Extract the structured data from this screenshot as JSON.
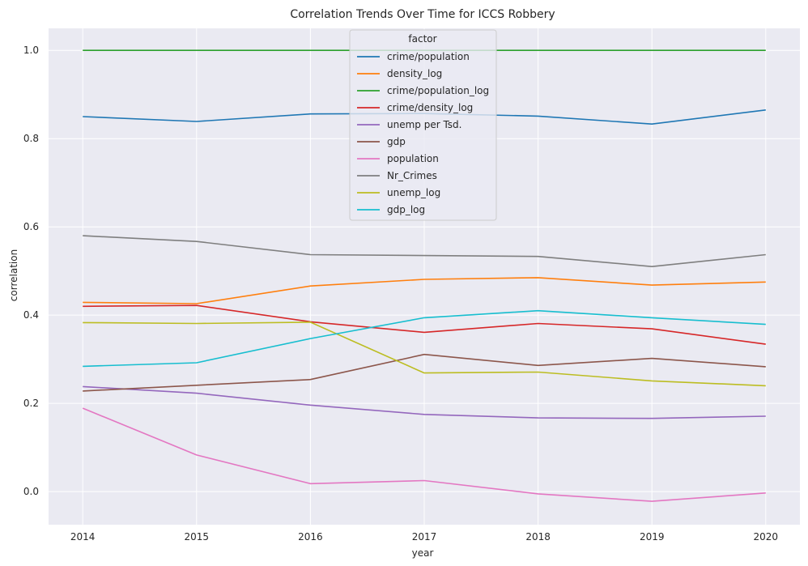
{
  "chart_data": {
    "type": "line",
    "title": "Correlation Trends Over Time for ICCS Robbery",
    "xlabel": "year",
    "ylabel": "correlation",
    "x": [
      2014,
      2015,
      2016,
      2017,
      2018,
      2019,
      2020
    ],
    "x_tick_labels": [
      "2014",
      "2015",
      "2016",
      "2017",
      "2018",
      "2019",
      "2020"
    ],
    "y_ticks": [
      0.0,
      0.2,
      0.4,
      0.6,
      0.8,
      1.0
    ],
    "y_tick_labels": [
      "0.0",
      "0.2",
      "0.4",
      "0.6",
      "0.8",
      "1.0"
    ],
    "xlim": [
      2013.7,
      2020.3
    ],
    "ylim": [
      -0.075,
      1.05
    ],
    "grid": true,
    "legend": {
      "title": "factor",
      "position": "upper-center"
    },
    "series": [
      {
        "name": "crime/population",
        "color": "#1f77b4",
        "values": [
          0.85,
          0.839,
          0.856,
          0.857,
          0.851,
          0.833,
          0.865
        ]
      },
      {
        "name": "density_log",
        "color": "#ff7f0e",
        "values": [
          0.429,
          0.426,
          0.466,
          0.481,
          0.485,
          0.468,
          0.475
        ]
      },
      {
        "name": "crime/population_log",
        "color": "#2ca02c",
        "values": [
          1.0,
          1.0,
          1.0,
          1.0,
          1.0,
          1.0,
          1.0
        ]
      },
      {
        "name": "crime/density_log",
        "color": "#d62728",
        "values": [
          0.42,
          0.422,
          0.385,
          0.361,
          0.381,
          0.369,
          0.334
        ]
      },
      {
        "name": "unemp per Tsd.",
        "color": "#9467bd",
        "values": [
          0.238,
          0.223,
          0.196,
          0.175,
          0.167,
          0.166,
          0.171
        ]
      },
      {
        "name": "gdp",
        "color": "#8c564b",
        "values": [
          0.228,
          0.241,
          0.254,
          0.311,
          0.286,
          0.302,
          0.283
        ]
      },
      {
        "name": "population",
        "color": "#e377c2",
        "values": [
          0.189,
          0.083,
          0.018,
          0.025,
          -0.005,
          -0.022,
          -0.003
        ]
      },
      {
        "name": "Nr_Crimes",
        "color": "#7f7f7f",
        "values": [
          0.58,
          0.567,
          0.537,
          0.535,
          0.533,
          0.51,
          0.537
        ]
      },
      {
        "name": "unemp_log",
        "color": "#bcbd22",
        "values": [
          0.383,
          0.381,
          0.384,
          0.269,
          0.271,
          0.251,
          0.24
        ]
      },
      {
        "name": "gdp_log",
        "color": "#17becf",
        "values": [
          0.284,
          0.292,
          0.347,
          0.394,
          0.41,
          0.394,
          0.379
        ]
      }
    ]
  }
}
